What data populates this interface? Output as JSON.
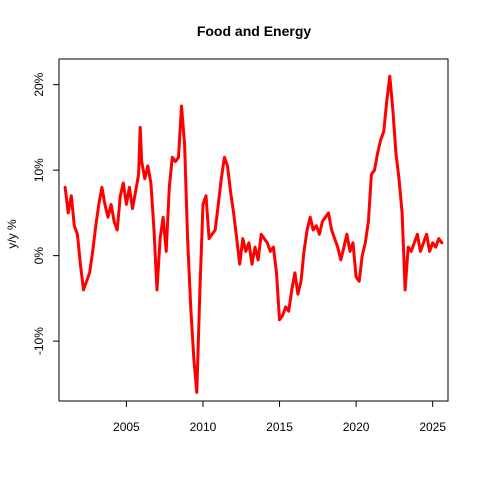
{
  "chart_data": {
    "type": "line",
    "title": "Food and Energy",
    "xlabel": "",
    "ylabel": "y/y %",
    "xlim": [
      2000.6,
      2026.0
    ],
    "ylim": [
      -17.0,
      23.0
    ],
    "grid": false,
    "legend": "none",
    "x_ticks": [
      {
        "value": 2005,
        "label": "2005"
      },
      {
        "value": 2010,
        "label": "2010"
      },
      {
        "value": 2015,
        "label": "2015"
      },
      {
        "value": 2020,
        "label": "2020"
      },
      {
        "value": 2025,
        "label": "2025"
      }
    ],
    "y_ticks": [
      {
        "value": -10,
        "label": "-10%"
      },
      {
        "value": 0,
        "label": "0%"
      },
      {
        "value": 10,
        "label": "10%"
      },
      {
        "value": 20,
        "label": "20%"
      }
    ],
    "series": [
      {
        "name": "",
        "color": "#ff0000",
        "x": [
          2001.0,
          2001.2,
          2001.4,
          2001.6,
          2001.8,
          2002.0,
          2002.2,
          2002.4,
          2002.6,
          2002.8,
          2003.0,
          2003.2,
          2003.4,
          2003.6,
          2003.8,
          2004.0,
          2004.2,
          2004.4,
          2004.6,
          2004.8,
          2005.0,
          2005.2,
          2005.4,
          2005.6,
          2005.8,
          2005.9,
          2006.0,
          2006.2,
          2006.4,
          2006.6,
          2006.8,
          2007.0,
          2007.2,
          2007.4,
          2007.6,
          2007.8,
          2008.0,
          2008.2,
          2008.4,
          2008.6,
          2008.8,
          2009.0,
          2009.2,
          2009.4,
          2009.6,
          2009.8,
          2010.0,
          2010.2,
          2010.4,
          2010.6,
          2010.8,
          2011.0,
          2011.2,
          2011.4,
          2011.6,
          2011.8,
          2012.0,
          2012.2,
          2012.4,
          2012.6,
          2012.8,
          2013.0,
          2013.2,
          2013.4,
          2013.6,
          2013.8,
          2014.0,
          2014.2,
          2014.4,
          2014.6,
          2014.8,
          2015.0,
          2015.2,
          2015.4,
          2015.6,
          2015.8,
          2016.0,
          2016.2,
          2016.4,
          2016.6,
          2016.8,
          2017.0,
          2017.2,
          2017.4,
          2017.6,
          2017.8,
          2018.0,
          2018.2,
          2018.4,
          2018.6,
          2018.8,
          2019.0,
          2019.2,
          2019.4,
          2019.6,
          2019.8,
          2020.0,
          2020.2,
          2020.4,
          2020.6,
          2020.8,
          2021.0,
          2021.2,
          2021.4,
          2021.6,
          2021.8,
          2022.0,
          2022.2,
          2022.4,
          2022.6,
          2022.8,
          2023.0,
          2023.2,
          2023.4,
          2023.6,
          2023.8,
          2024.0,
          2024.2,
          2024.4,
          2024.6,
          2024.8,
          2025.0,
          2025.2,
          2025.4,
          2025.6
        ],
        "y": [
          8.0,
          5.0,
          7.0,
          3.5,
          2.5,
          -1.0,
          -4.0,
          -3.0,
          -2.0,
          0.5,
          3.5,
          6.0,
          8.0,
          6.0,
          4.5,
          6.0,
          4.0,
          3.0,
          7.0,
          8.5,
          6.0,
          8.0,
          5.5,
          7.5,
          9.5,
          15.0,
          11.0,
          9.0,
          10.5,
          8.5,
          3.0,
          -4.0,
          2.0,
          4.5,
          0.5,
          8.0,
          11.5,
          11.0,
          11.5,
          17.5,
          13.0,
          2.0,
          -6.0,
          -12.0,
          -16.0,
          -4.0,
          6.0,
          7.0,
          2.0,
          2.5,
          3.0,
          6.0,
          9.0,
          11.5,
          10.5,
          7.5,
          5.0,
          2.0,
          -1.0,
          2.0,
          0.5,
          1.5,
          -1.0,
          1.0,
          -0.5,
          2.5,
          2.0,
          1.5,
          0.5,
          1.0,
          -2.0,
          -7.5,
          -7.0,
          -6.0,
          -6.5,
          -4.0,
          -2.0,
          -4.5,
          -3.0,
          0.5,
          3.0,
          4.5,
          3.0,
          3.5,
          2.5,
          4.0,
          4.5,
          5.0,
          3.0,
          2.0,
          1.0,
          -0.5,
          1.0,
          2.5,
          0.5,
          1.5,
          -2.5,
          -3.0,
          0.0,
          1.5,
          4.0,
          9.5,
          10.0,
          12.0,
          13.5,
          14.5,
          18.0,
          21.0,
          17.0,
          12.0,
          9.0,
          5.0,
          -4.0,
          1.0,
          0.5,
          1.5,
          2.5,
          0.5,
          1.5,
          2.5,
          0.5,
          1.5,
          1.0,
          2.0,
          1.5
        ]
      }
    ]
  }
}
